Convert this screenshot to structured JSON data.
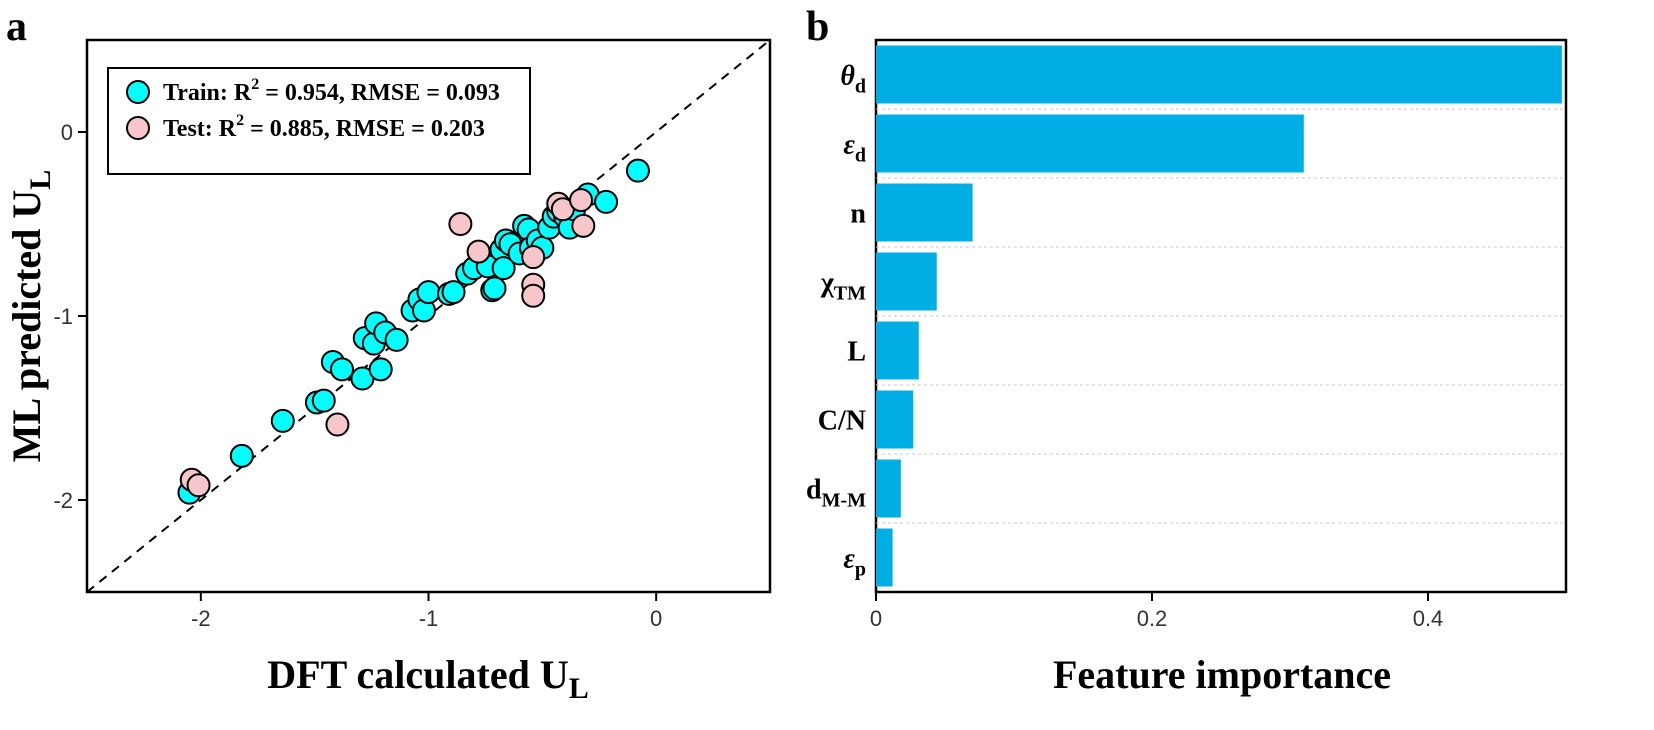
{
  "panel_a_letter": "a",
  "panel_b_letter": "b",
  "chart_data": [
    {
      "type": "scatter",
      "xlabel": "DFT calculated U",
      "xlabel_sub": "L",
      "ylabel": "ML predicted U",
      "ylabel_sub": "L",
      "xlim": [
        -2.5,
        0.5
      ],
      "ylim": [
        -2.5,
        0.5
      ],
      "xticks": [
        -2,
        -1,
        0
      ],
      "yticks": [
        -2,
        -1,
        0
      ],
      "xtick_labels": [
        "-2",
        "-1",
        "0"
      ],
      "ytick_labels": [
        "-2",
        "-1",
        "0"
      ],
      "diagonal": true,
      "legend_position": "top-left",
      "series": [
        {
          "name": "Train",
          "legend_prefix": "Train: R",
          "legend_sup": "2",
          "legend_suffix": " = 0.954, RMSE = 0.093",
          "color": "#00ffff",
          "points": [
            [
              -2.05,
              -1.96
            ],
            [
              -1.82,
              -1.76
            ],
            [
              -1.64,
              -1.57
            ],
            [
              -1.49,
              -1.47
            ],
            [
              -1.46,
              -1.46
            ],
            [
              -1.42,
              -1.25
            ],
            [
              -1.38,
              -1.29
            ],
            [
              -1.29,
              -1.34
            ],
            [
              -1.28,
              -1.12
            ],
            [
              -1.24,
              -1.15
            ],
            [
              -1.23,
              -1.04
            ],
            [
              -1.21,
              -1.29
            ],
            [
              -1.19,
              -1.09
            ],
            [
              -1.14,
              -1.13
            ],
            [
              -1.07,
              -0.97
            ],
            [
              -1.04,
              -0.91
            ],
            [
              -1.02,
              -0.97
            ],
            [
              -1.0,
              -0.87
            ],
            [
              -0.91,
              -0.88
            ],
            [
              -0.89,
              -0.87
            ],
            [
              -0.83,
              -0.77
            ],
            [
              -0.8,
              -0.74
            ],
            [
              -0.74,
              -0.73
            ],
            [
              -0.72,
              -0.86
            ],
            [
              -0.71,
              -0.85
            ],
            [
              -0.68,
              -0.64
            ],
            [
              -0.67,
              -0.74
            ],
            [
              -0.66,
              -0.59
            ],
            [
              -0.64,
              -0.61
            ],
            [
              -0.6,
              -0.66
            ],
            [
              -0.58,
              -0.51
            ],
            [
              -0.56,
              -0.53
            ],
            [
              -0.55,
              -0.63
            ],
            [
              -0.52,
              -0.59
            ],
            [
              -0.5,
              -0.63
            ],
            [
              -0.47,
              -0.52
            ],
            [
              -0.45,
              -0.46
            ],
            [
              -0.43,
              -0.43
            ],
            [
              -0.4,
              -0.46
            ],
            [
              -0.38,
              -0.52
            ],
            [
              -0.36,
              -0.42
            ],
            [
              -0.3,
              -0.34
            ],
            [
              -0.22,
              -0.38
            ],
            [
              -0.08,
              -0.21
            ]
          ]
        },
        {
          "name": "Test",
          "legend_prefix": "Test: R",
          "legend_sup": "2",
          "legend_suffix": " = 0.885, RMSE = 0.203",
          "color": "#f7c6cb",
          "points": [
            [
              -2.04,
              -1.89
            ],
            [
              -2.01,
              -1.92
            ],
            [
              -1.4,
              -1.59
            ],
            [
              -0.86,
              -0.5
            ],
            [
              -0.78,
              -0.65
            ],
            [
              -0.54,
              -0.68
            ],
            [
              -0.54,
              -0.83
            ],
            [
              -0.54,
              -0.89
            ],
            [
              -0.43,
              -0.39
            ],
            [
              -0.41,
              -0.42
            ],
            [
              -0.33,
              -0.37
            ],
            [
              -0.32,
              -0.51
            ]
          ]
        }
      ]
    },
    {
      "type": "bar",
      "orientation": "horizontal",
      "xlabel": "Feature importance",
      "xlim": [
        0,
        0.5
      ],
      "xticks": [
        0,
        0.2,
        0.4
      ],
      "xtick_labels": [
        "0",
        "0.2",
        "0.4"
      ],
      "color": "#00aee6",
      "categories": [
        {
          "main": "θ",
          "sub": "d",
          "italic": true
        },
        {
          "main": "ε",
          "sub": "d",
          "italic": true
        },
        {
          "main": "n",
          "sub": "",
          "italic": false
        },
        {
          "main": "χ",
          "sub": "TM",
          "italic": false
        },
        {
          "main": "L",
          "sub": "",
          "italic": false
        },
        {
          "main": "C/N",
          "sub": "",
          "italic": false
        },
        {
          "main": "d",
          "sub": "M-M",
          "italic": false
        },
        {
          "main": "ε",
          "sub": "p",
          "italic": true
        }
      ],
      "values": [
        0.497,
        0.31,
        0.07,
        0.044,
        0.031,
        0.027,
        0.018,
        0.012
      ]
    }
  ]
}
